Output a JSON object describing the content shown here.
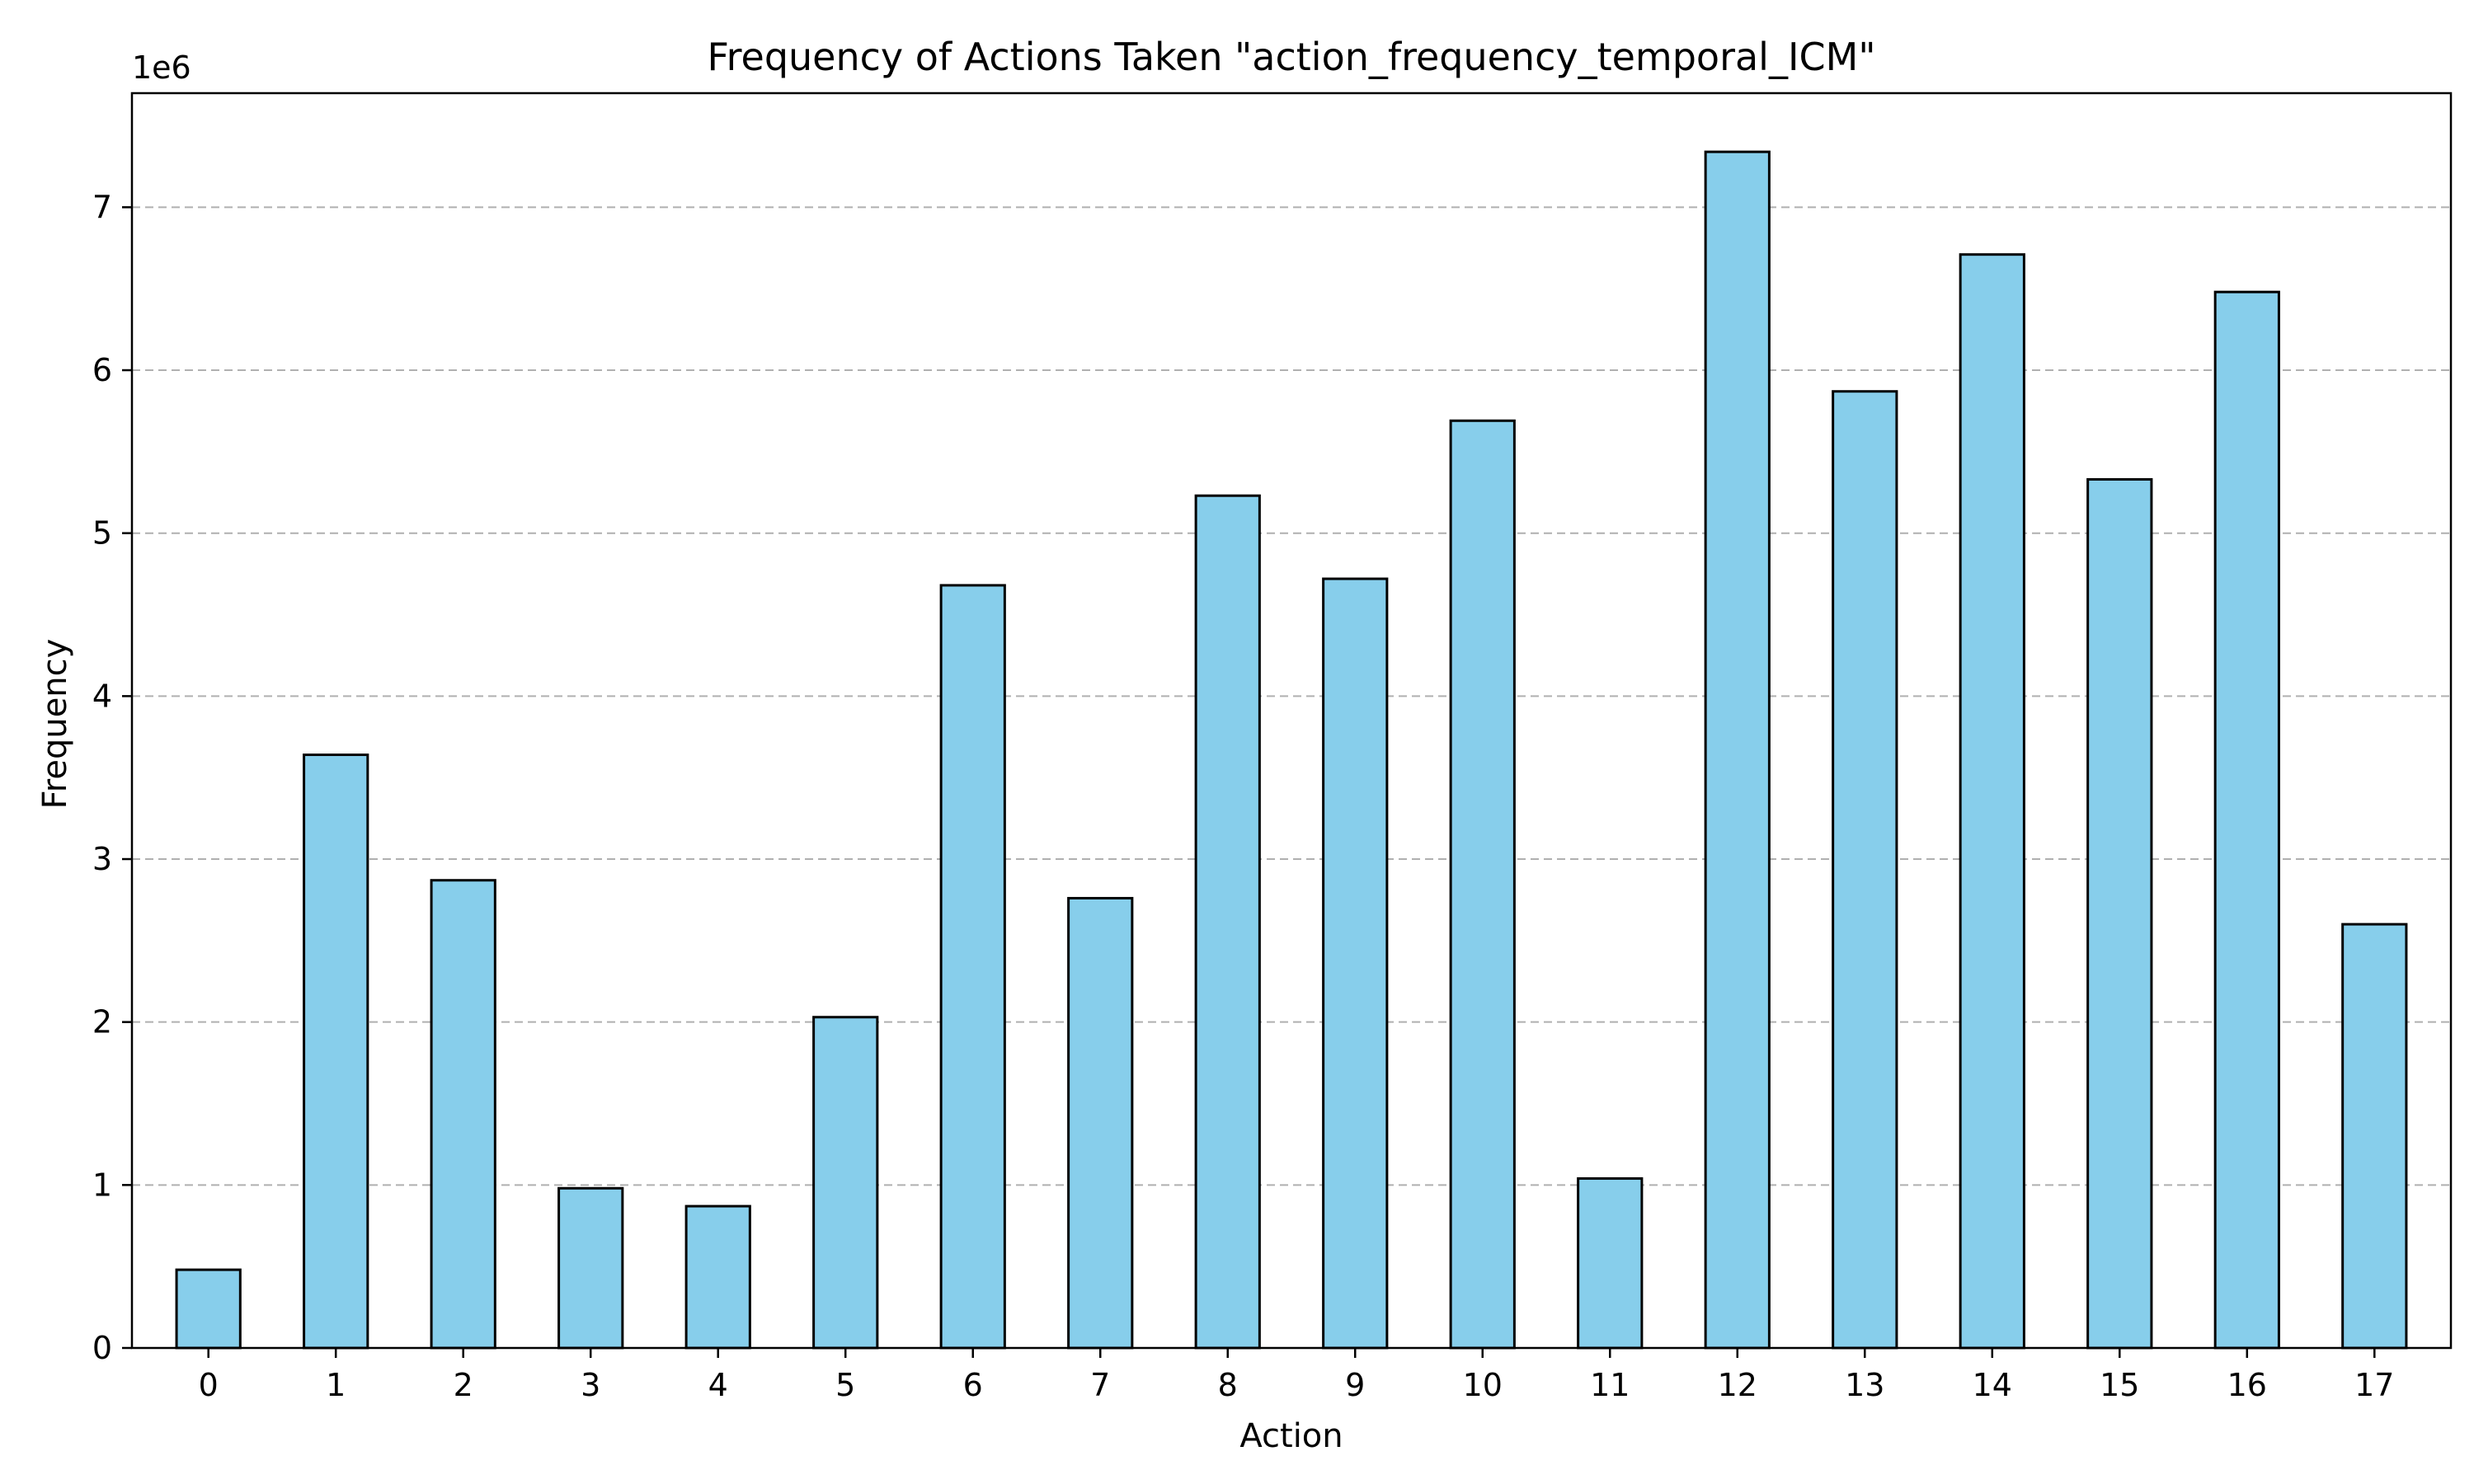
{
  "chart_data": {
    "type": "bar",
    "title": "Frequency of Actions Taken \"action_frequency_temporal_ICM\"",
    "xlabel": "Action",
    "ylabel": "Frequency",
    "y_offset_label": "1e6",
    "categories": [
      "0",
      "1",
      "2",
      "3",
      "4",
      "5",
      "6",
      "7",
      "8",
      "9",
      "10",
      "11",
      "12",
      "13",
      "14",
      "15",
      "16",
      "17"
    ],
    "values": [
      480000,
      3640000,
      2870000,
      980000,
      870000,
      2030000,
      4680000,
      2760000,
      5230000,
      4720000,
      5690000,
      1040000,
      7340000,
      5870000,
      6710000,
      5330000,
      6480000,
      2600000
    ],
    "y_ticks": [
      0,
      1000000,
      2000000,
      3000000,
      4000000,
      5000000,
      6000000,
      7000000
    ],
    "y_tick_labels": [
      "0",
      "1",
      "2",
      "3",
      "4",
      "5",
      "6",
      "7"
    ],
    "ylim": [
      0,
      7700000
    ],
    "grid": "horizontal dashed",
    "bar_color": "#87CEEB",
    "edge_color": "#000000"
  }
}
